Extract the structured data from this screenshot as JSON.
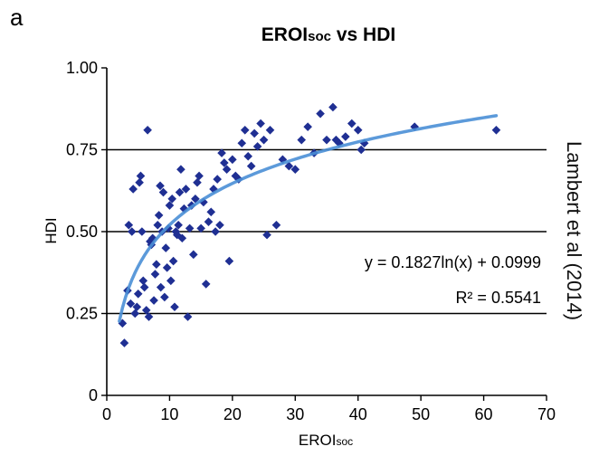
{
  "panel_label": "a",
  "side_credit": "Lambert et al (2014)",
  "colors": {
    "points": "#1f2f93",
    "trend": "#4a8fd6",
    "gridline": "#000000",
    "axis": "#000000"
  },
  "chart_data": {
    "type": "scatter",
    "title": "EROIsoc vs HDI",
    "title_main": "EROI",
    "title_sub": "soc",
    "title_rest": " vs HDI",
    "xlabel": "EROIsoc",
    "xlabel_main": "EROI",
    "xlabel_sub": "soc",
    "ylabel": "HDI",
    "xlim": [
      0,
      70
    ],
    "ylim": [
      0,
      1.0
    ],
    "xticks": [
      "0",
      "10",
      "20",
      "30",
      "40",
      "50",
      "60",
      "70"
    ],
    "yticks": [
      "0",
      "0.25",
      "0.50",
      "0.75",
      "1.00"
    ],
    "horizontal_gridlines": [
      0.25,
      0.5,
      0.75
    ],
    "annotations": {
      "equation": "y = 0.1827ln(x) + 0.0999",
      "r2": "R² = 0.5541"
    },
    "trendline": {
      "type": "logarithmic",
      "a": 0.1827,
      "b": 0.0999,
      "x_from": 2,
      "x_to": 62
    },
    "series": [
      {
        "marker": "diamond",
        "points": [
          [
            2.5,
            0.22
          ],
          [
            2.8,
            0.16
          ],
          [
            3.3,
            0.32
          ],
          [
            3.5,
            0.52
          ],
          [
            3.8,
            0.28
          ],
          [
            4,
            0.5
          ],
          [
            4.2,
            0.63
          ],
          [
            4.5,
            0.25
          ],
          [
            4.8,
            0.27
          ],
          [
            5,
            0.31
          ],
          [
            5.2,
            0.65
          ],
          [
            5.4,
            0.67
          ],
          [
            5.6,
            0.5
          ],
          [
            5.8,
            0.35
          ],
          [
            6,
            0.33
          ],
          [
            6.3,
            0.26
          ],
          [
            6.5,
            0.81
          ],
          [
            6.7,
            0.24
          ],
          [
            6.9,
            0.47
          ],
          [
            7.1,
            0.46
          ],
          [
            7.3,
            0.48
          ],
          [
            7.5,
            0.29
          ],
          [
            7.7,
            0.37
          ],
          [
            7.9,
            0.4
          ],
          [
            8.1,
            0.52
          ],
          [
            8.3,
            0.55
          ],
          [
            8.5,
            0.64
          ],
          [
            8.6,
            0.33
          ],
          [
            8.8,
            0.5
          ],
          [
            9,
            0.62
          ],
          [
            9.2,
            0.3
          ],
          [
            9.4,
            0.45
          ],
          [
            9.6,
            0.39
          ],
          [
            9.8,
            0.51
          ],
          [
            10,
            0.58
          ],
          [
            10.2,
            0.35
          ],
          [
            10.4,
            0.6
          ],
          [
            10.6,
            0.41
          ],
          [
            10.8,
            0.27
          ],
          [
            11,
            0.5
          ],
          [
            11.2,
            0.49
          ],
          [
            11.4,
            0.52
          ],
          [
            11.6,
            0.62
          ],
          [
            11.8,
            0.69
          ],
          [
            12,
            0.48
          ],
          [
            12.3,
            0.57
          ],
          [
            12.6,
            0.63
          ],
          [
            12.9,
            0.24
          ],
          [
            13.2,
            0.51
          ],
          [
            13.5,
            0.58
          ],
          [
            13.8,
            0.43
          ],
          [
            14.1,
            0.6
          ],
          [
            14.4,
            0.65
          ],
          [
            14.7,
            0.67
          ],
          [
            15,
            0.51
          ],
          [
            15.4,
            0.59
          ],
          [
            15.8,
            0.34
          ],
          [
            16.2,
            0.53
          ],
          [
            16.6,
            0.56
          ],
          [
            17,
            0.63
          ],
          [
            17.3,
            0.5
          ],
          [
            17.6,
            0.66
          ],
          [
            18,
            0.52
          ],
          [
            18.3,
            0.74
          ],
          [
            18.7,
            0.71
          ],
          [
            19.1,
            0.69
          ],
          [
            19.5,
            0.41
          ],
          [
            20,
            0.72
          ],
          [
            20.5,
            0.67
          ],
          [
            21,
            0.66
          ],
          [
            21.5,
            0.77
          ],
          [
            22,
            0.81
          ],
          [
            22.5,
            0.73
          ],
          [
            23,
            0.7
          ],
          [
            23.5,
            0.8
          ],
          [
            24,
            0.76
          ],
          [
            24.5,
            0.83
          ],
          [
            25,
            0.78
          ],
          [
            25.5,
            0.49
          ],
          [
            26,
            0.81
          ],
          [
            27,
            0.52
          ],
          [
            28,
            0.72
          ],
          [
            29,
            0.7
          ],
          [
            30,
            0.69
          ],
          [
            31,
            0.78
          ],
          [
            32,
            0.82
          ],
          [
            33,
            0.74
          ],
          [
            34,
            0.86
          ],
          [
            35,
            0.78
          ],
          [
            36,
            0.88
          ],
          [
            36.5,
            0.78
          ],
          [
            37,
            0.77
          ],
          [
            38,
            0.79
          ],
          [
            39,
            0.83
          ],
          [
            40,
            0.81
          ],
          [
            40.5,
            0.75
          ],
          [
            41,
            0.77
          ],
          [
            49,
            0.82
          ],
          [
            62,
            0.81
          ]
        ]
      }
    ]
  }
}
